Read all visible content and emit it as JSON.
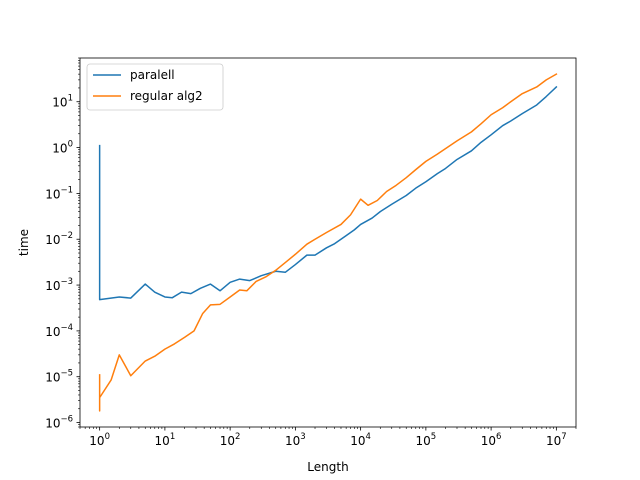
{
  "chart_data": {
    "type": "line",
    "title": "",
    "xlabel": "Length",
    "ylabel": "time",
    "xscale": "log",
    "yscale": "log",
    "xlim": [
      0.5,
      20000000
    ],
    "ylim": [
      8e-07,
      90
    ],
    "xticks": [
      {
        "value": 1,
        "base": "10",
        "exp": "0"
      },
      {
        "value": 10,
        "base": "10",
        "exp": "1"
      },
      {
        "value": 100,
        "base": "10",
        "exp": "2"
      },
      {
        "value": 1000,
        "base": "10",
        "exp": "3"
      },
      {
        "value": 10000,
        "base": "10",
        "exp": "4"
      },
      {
        "value": 100000,
        "base": "10",
        "exp": "5"
      },
      {
        "value": 1000000,
        "base": "10",
        "exp": "6"
      },
      {
        "value": 10000000,
        "base": "10",
        "exp": "7"
      }
    ],
    "yticks": [
      {
        "value": 1e-06,
        "base": "10",
        "exp": "−6"
      },
      {
        "value": 1e-05,
        "base": "10",
        "exp": "−5"
      },
      {
        "value": 0.0001,
        "base": "10",
        "exp": "−4"
      },
      {
        "value": 0.001,
        "base": "10",
        "exp": "−3"
      },
      {
        "value": 0.01,
        "base": "10",
        "exp": "−2"
      },
      {
        "value": 0.1,
        "base": "10",
        "exp": "−1"
      },
      {
        "value": 1,
        "base": "10",
        "exp": "0"
      },
      {
        "value": 10,
        "base": "10",
        "exp": "1"
      }
    ],
    "grid": false,
    "legend_position": "top-left",
    "series": [
      {
        "name": "paralell",
        "color": "#1f77b4",
        "points": [
          [
            1,
            1.1
          ],
          [
            1,
            0.00048
          ],
          [
            2,
            0.00055
          ],
          [
            3,
            0.00052
          ],
          [
            5,
            0.00105
          ],
          [
            7,
            0.0007
          ],
          [
            10,
            0.00055
          ],
          [
            13,
            0.00053
          ],
          [
            18,
            0.0007
          ],
          [
            25,
            0.00065
          ],
          [
            35,
            0.00085
          ],
          [
            50,
            0.00105
          ],
          [
            70,
            0.00075
          ],
          [
            100,
            0.00115
          ],
          [
            140,
            0.00135
          ],
          [
            200,
            0.00125
          ],
          [
            300,
            0.0016
          ],
          [
            500,
            0.002
          ],
          [
            700,
            0.0019
          ],
          [
            1000,
            0.0028
          ],
          [
            1500,
            0.0045
          ],
          [
            2000,
            0.0045
          ],
          [
            3000,
            0.0065
          ],
          [
            4000,
            0.008
          ],
          [
            6000,
            0.012
          ],
          [
            8000,
            0.016
          ],
          [
            10000,
            0.021
          ],
          [
            15000,
            0.029
          ],
          [
            20000,
            0.04
          ],
          [
            30000,
            0.058
          ],
          [
            50000,
            0.09
          ],
          [
            70000,
            0.13
          ],
          [
            100000,
            0.18
          ],
          [
            150000,
            0.27
          ],
          [
            200000,
            0.35
          ],
          [
            300000,
            0.55
          ],
          [
            500000,
            0.85
          ],
          [
            700000,
            1.3
          ],
          [
            1000000,
            1.9
          ],
          [
            1500000,
            3.0
          ],
          [
            2000000,
            3.8
          ],
          [
            3000000,
            5.5
          ],
          [
            5000000,
            8.5
          ],
          [
            7000000,
            13
          ],
          [
            10000000,
            21
          ]
        ]
      },
      {
        "name": "regular alg2",
        "color": "#ff7f0e",
        "points": [
          [
            1,
            1.1e-05
          ],
          [
            1,
            1.8e-06
          ],
          [
            1,
            3.5e-06
          ],
          [
            1.5,
            8.5e-06
          ],
          [
            2,
            3e-05
          ],
          [
            3,
            1.05e-05
          ],
          [
            5,
            2.2e-05
          ],
          [
            7,
            2.8e-05
          ],
          [
            10,
            4e-05
          ],
          [
            14,
            5.2e-05
          ],
          [
            20,
            7.2e-05
          ],
          [
            28,
            0.0001
          ],
          [
            38,
            0.00024
          ],
          [
            50,
            0.00037
          ],
          [
            70,
            0.00038
          ],
          [
            100,
            0.00055
          ],
          [
            140,
            0.00078
          ],
          [
            180,
            0.00075
          ],
          [
            250,
            0.0012
          ],
          [
            350,
            0.0015
          ],
          [
            500,
            0.0021
          ],
          [
            700,
            0.0031
          ],
          [
            1000,
            0.0047
          ],
          [
            1500,
            0.0078
          ],
          [
            2000,
            0.01
          ],
          [
            3000,
            0.014
          ],
          [
            5000,
            0.021
          ],
          [
            7000,
            0.034
          ],
          [
            10000,
            0.075
          ],
          [
            13000,
            0.055
          ],
          [
            18000,
            0.07
          ],
          [
            25000,
            0.11
          ],
          [
            35000,
            0.15
          ],
          [
            50000,
            0.22
          ],
          [
            70000,
            0.33
          ],
          [
            100000,
            0.5
          ],
          [
            150000,
            0.72
          ],
          [
            200000,
            0.95
          ],
          [
            300000,
            1.4
          ],
          [
            500000,
            2.2
          ],
          [
            700000,
            3.3
          ],
          [
            1000000,
            5.2
          ],
          [
            1500000,
            7.4
          ],
          [
            2000000,
            10
          ],
          [
            3000000,
            15
          ],
          [
            5000000,
            21
          ],
          [
            7000000,
            30
          ],
          [
            10000000,
            40
          ]
        ]
      }
    ]
  }
}
